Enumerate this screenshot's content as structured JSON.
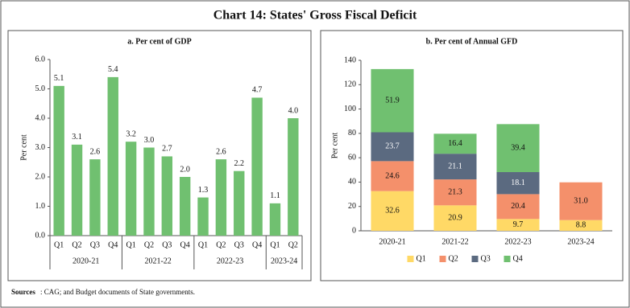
{
  "title": "Chart 14: States' Gross Fiscal Deficit",
  "source": {
    "label": "Sources",
    "text": ": CAG; and Budget documents of State governments."
  },
  "chart_data": [
    {
      "type": "bar",
      "title": "a. Per cent of GDP",
      "y_label": "Per cent",
      "color": "#70c070",
      "ylim": [
        0,
        6
      ],
      "yticks": [
        {
          "value": 0,
          "label": "0.0"
        },
        {
          "value": 1,
          "label": "1.0"
        },
        {
          "value": 2,
          "label": "2.0"
        },
        {
          "value": 3,
          "label": "3.0"
        },
        {
          "value": 4,
          "label": "4.0"
        },
        {
          "value": 5,
          "label": "5.0"
        },
        {
          "value": 6,
          "label": "6.0"
        }
      ],
      "groups": [
        {
          "name": "2020-21",
          "categories": [
            "Q1",
            "Q2",
            "Q3",
            "Q4"
          ],
          "values": [
            5.1,
            3.1,
            2.6,
            5.4
          ],
          "value_labels": [
            "5.1",
            "3.1",
            "2.6",
            "5.4"
          ]
        },
        {
          "name": "2021-22",
          "categories": [
            "Q1",
            "Q2",
            "Q3",
            "Q4"
          ],
          "values": [
            3.2,
            3.0,
            2.7,
            2.0
          ],
          "value_labels": [
            "3.2",
            "3.0",
            "2.7",
            "2.0"
          ]
        },
        {
          "name": "2022-23",
          "categories": [
            "Q1",
            "Q2",
            "Q3",
            "Q4"
          ],
          "values": [
            1.3,
            2.6,
            2.2,
            4.7
          ],
          "value_labels": [
            "1.3",
            "2.6",
            "2.2",
            "4.7"
          ]
        },
        {
          "name": "2023-24",
          "categories": [
            "Q1",
            "Q2"
          ],
          "values": [
            1.1,
            4.0
          ],
          "value_labels": [
            "1.1",
            "4.0"
          ]
        }
      ]
    },
    {
      "type": "stacked_bar",
      "title": "b. Per cent of Annual GFD",
      "y_label": "Per cent",
      "legend": "bottom",
      "categories": [
        "2020-21",
        "2021-22",
        "2022-23",
        "2023-24"
      ],
      "ylim": [
        0,
        140
      ],
      "yticks": [
        0,
        20,
        40,
        60,
        80,
        100,
        120,
        140
      ],
      "series": [
        {
          "name": "Q1",
          "color": "#ffd966",
          "values": [
            32.6,
            20.9,
            9.7,
            8.8
          ]
        },
        {
          "name": "Q2",
          "color": "#f4906b",
          "values": [
            24.6,
            21.3,
            20.4,
            31.0
          ],
          "value_labels": [
            "24.6",
            "21.3",
            "20.4",
            "31.0"
          ]
        },
        {
          "name": "Q3",
          "color": "#5b6a80",
          "values": [
            23.7,
            21.1,
            18.1,
            null
          ]
        },
        {
          "name": "Q4",
          "color": "#70c070",
          "values": [
            51.9,
            16.4,
            39.4,
            null
          ]
        }
      ]
    }
  ]
}
